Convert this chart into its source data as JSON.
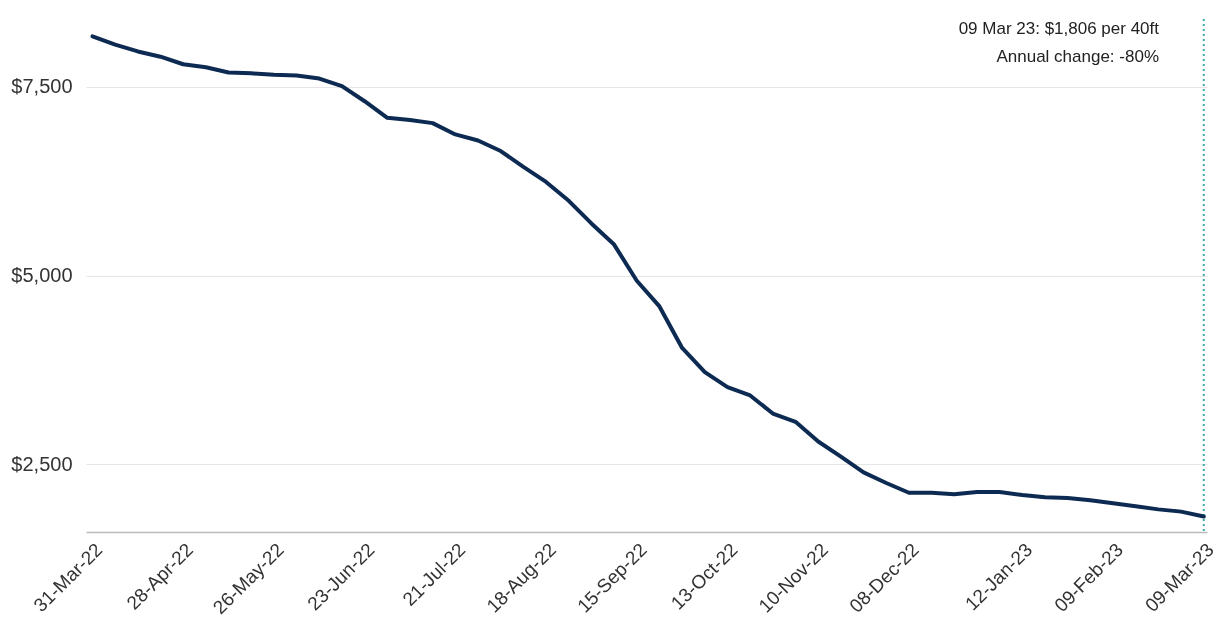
{
  "chart_data": {
    "type": "line",
    "annotations": [
      "09 Mar 23: $1,806 per 40ft",
      "Annual change: -80%"
    ],
    "x": [
      "2022-03-31",
      "2022-04-07",
      "2022-04-14",
      "2022-04-21",
      "2022-04-28",
      "2022-05-05",
      "2022-05-12",
      "2022-05-19",
      "2022-05-26",
      "2022-06-02",
      "2022-06-09",
      "2022-06-16",
      "2022-06-23",
      "2022-06-30",
      "2022-07-07",
      "2022-07-14",
      "2022-07-21",
      "2022-07-28",
      "2022-08-04",
      "2022-08-11",
      "2022-08-18",
      "2022-08-25",
      "2022-09-01",
      "2022-09-08",
      "2022-09-15",
      "2022-09-22",
      "2022-09-29",
      "2022-10-06",
      "2022-10-13",
      "2022-10-20",
      "2022-10-27",
      "2022-11-03",
      "2022-11-10",
      "2022-11-17",
      "2022-11-24",
      "2022-12-01",
      "2022-12-08",
      "2022-12-15",
      "2022-12-22",
      "2022-12-29",
      "2023-01-05",
      "2023-01-12",
      "2023-01-19",
      "2023-01-26",
      "2023-02-02",
      "2023-02-09",
      "2023-02-16",
      "2023-02-23",
      "2023-03-02",
      "2023-03-09"
    ],
    "series": [
      {
        "color": "#0d2b52",
        "values": [
          8170,
          8060,
          7970,
          7900,
          7800,
          7760,
          7690,
          7680,
          7660,
          7650,
          7610,
          7510,
          7310,
          7090,
          7060,
          7020,
          6870,
          6790,
          6650,
          6440,
          6240,
          5990,
          5690,
          5410,
          4930,
          4590,
          4040,
          3720,
          3520,
          3410,
          3170,
          3060,
          2800,
          2600,
          2390,
          2250,
          2120,
          2120,
          2100,
          2130,
          2130,
          2090,
          2060,
          2050,
          2020,
          1980,
          1940,
          1900,
          1870,
          1806
        ]
      }
    ],
    "xlim": [
      "2022-03-29",
      "2023-03-10"
    ],
    "xticks": [
      {
        "value": "2022-03-31",
        "label": "31-Mar-22"
      },
      {
        "value": "2022-04-28",
        "label": "28-Apr-22"
      },
      {
        "value": "2022-05-26",
        "label": "26-May-22"
      },
      {
        "value": "2022-06-23",
        "label": "23-Jun-22"
      },
      {
        "value": "2022-07-21",
        "label": "21-Jul-22"
      },
      {
        "value": "2022-08-18",
        "label": "18-Aug-22"
      },
      {
        "value": "2022-09-15",
        "label": "15-Sep-22"
      },
      {
        "value": "2022-10-13",
        "label": "13-Oct-22"
      },
      {
        "value": "2022-11-10",
        "label": "10-Nov-22"
      },
      {
        "value": "2022-12-08",
        "label": "08-Dec-22"
      },
      {
        "value": "2023-01-12",
        "label": "12-Jan-23"
      },
      {
        "value": "2023-02-09",
        "label": "09-Feb-23"
      },
      {
        "value": "2023-03-09",
        "label": "09-Mar-23"
      }
    ],
    "ylim": [
      1600,
      8400
    ],
    "yticks": [
      {
        "value": 2500,
        "label": "$2,500"
      },
      {
        "value": 5000,
        "label": "$5,000"
      },
      {
        "value": 7500,
        "label": "$7,500"
      }
    ],
    "ref_lines": [
      {
        "axis": "x",
        "value": "2023-03-09",
        "color": "#3aaea8",
        "line_style": "dotted"
      }
    ],
    "grid": "y",
    "marker": "none",
    "line_style": "solid"
  }
}
